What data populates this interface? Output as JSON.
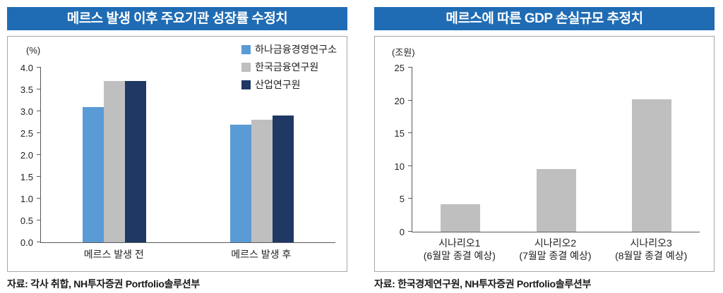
{
  "left_chart": {
    "title": "메르스 발생 이후 주요기관 성장률 수정치",
    "unit_label": "(%)",
    "source": "자료: 각사 취합, NH투자증권 Portfolio솔루션부"
  },
  "right_chart": {
    "title": "메르스에 따른 GDP 손실규모 추정치",
    "unit_label": "(조원)",
    "source": "자료: 한국경제연구원, NH투자증권 Portfolio솔루션부"
  },
  "colors": {
    "title_bar": "#1f6cb4",
    "series_blue": "#5b9bd5",
    "series_gray": "#bfbfbf",
    "series_navy": "#1f3864",
    "axis": "#595959"
  },
  "chart_data": [
    {
      "type": "bar",
      "title": "메르스 발생 이후 주요기관 성장률 수정치",
      "ylabel": "(%)",
      "ylim": [
        0,
        4.0
      ],
      "yticks": [
        "0.0",
        "0.5",
        "1.0",
        "1.5",
        "2.0",
        "2.5",
        "3.0",
        "3.5",
        "4.0"
      ],
      "grid": false,
      "legend_position": "top-right",
      "categories": [
        "메르스 발생 전",
        "메르스 발생 후"
      ],
      "series": [
        {
          "name": "하나금융경영연구소",
          "color": "#5b9bd5",
          "values": [
            3.1,
            2.7
          ]
        },
        {
          "name": "한국금융연구원",
          "color": "#bfbfbf",
          "values": [
            3.7,
            2.8
          ]
        },
        {
          "name": "산업연구원",
          "color": "#1f3864",
          "values": [
            3.7,
            2.9
          ]
        }
      ]
    },
    {
      "type": "bar",
      "title": "메르스에 따른 GDP 손실규모 추정치",
      "ylabel": "(조원)",
      "ylim": [
        0,
        25
      ],
      "yticks": [
        "0",
        "5",
        "10",
        "15",
        "20",
        "25"
      ],
      "grid": false,
      "bar_color": "#bfbfbf",
      "categories": [
        [
          "시나리오1",
          "(6월말 종결 예상)"
        ],
        [
          "시나리오2",
          "(7월말 종결 예상)"
        ],
        [
          "시나리오3",
          "(8월말 종결 예상)"
        ]
      ],
      "values": [
        4.2,
        9.5,
        20.2
      ]
    }
  ]
}
